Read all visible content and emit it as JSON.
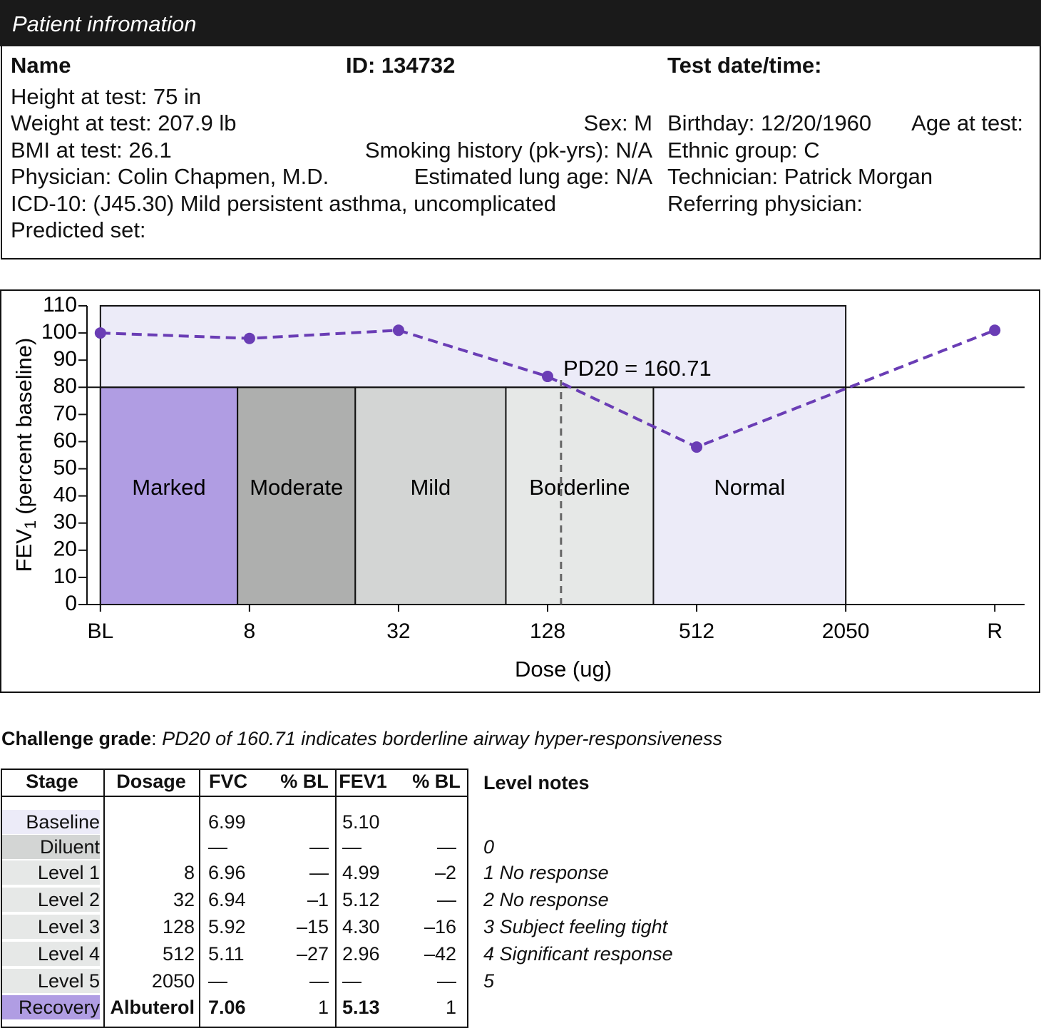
{
  "header": {
    "title": "Patient infromation"
  },
  "info": {
    "name": "Name",
    "id": "ID: 134732",
    "test_date": "Test date/time:",
    "height": "Height at test: 75 in",
    "weight": "Weight at test: 207.9 lb",
    "sex": "Sex: M",
    "birthday": "Birthday: 12/20/1960",
    "age": "Age at test:",
    "bmi": "BMI at test: 26.1",
    "smoking": "Smoking history (pk-yrs): N/A",
    "ethnic": "Ethnic group: C",
    "physician": "Physician: Colin Chapmen, M.D.",
    "lung_age": "Estimated lung age: N/A",
    "technician": "Technician: Patrick Morgan",
    "icd": "ICD-10: (J45.30) Mild persistent asthma, uncomplicated",
    "referring": "Referring physician:",
    "predicted": "Predicted set:"
  },
  "chart_data": {
    "type": "line",
    "xlabel": "Dose (ug)",
    "ylabel": "FEV",
    "ylabel_sub": "1",
    "ylabel_rest": "(percent baseline)",
    "x": [
      0,
      1,
      2,
      3,
      4,
      6
    ],
    "series": [
      {
        "color": "#6a3db5",
        "values": [
          100,
          98,
          101,
          84,
          58,
          101
        ]
      }
    ],
    "xlim": [
      -0.09,
      6.2
    ],
    "xticks": [
      {
        "value": 0,
        "label": "BL"
      },
      {
        "value": 1,
        "label": "8"
      },
      {
        "value": 2,
        "label": "32"
      },
      {
        "value": 3,
        "label": "128"
      },
      {
        "value": 4,
        "label": "512"
      },
      {
        "value": 5,
        "label": "2050"
      },
      {
        "value": 6,
        "label": "R"
      }
    ],
    "ylim": [
      0,
      110
    ],
    "yticks": [
      0,
      10,
      20,
      30,
      40,
      50,
      60,
      70,
      80,
      90,
      100,
      110
    ],
    "background": {
      "x": [
        0,
        5
      ],
      "color": "#ecebf8"
    },
    "threshold": 80,
    "zones": [
      {
        "label": "Marked",
        "x": [
          0,
          0.92
        ],
        "color": "#b09de3"
      },
      {
        "label": "Moderate",
        "x": [
          0.92,
          1.71
        ],
        "color": "#aeafae"
      },
      {
        "label": "Mild",
        "x": [
          1.71,
          2.72
        ],
        "color": "#d3d5d4"
      },
      {
        "label": "Borderline",
        "x": [
          2.72,
          3.71
        ],
        "color": "#e6e8e7"
      },
      {
        "label": "Normal",
        "x": [
          3.71,
          5
        ],
        "color": "#ecebf8"
      }
    ],
    "pd20": {
      "label": "PD20 = 160.71",
      "x": 3.09
    }
  },
  "grade": {
    "label": "Challenge grade",
    "sep": ":",
    "text": "PD20 of 160.71 indicates borderline airway hyper-responsiveness"
  },
  "table": {
    "columns": [
      "Stage",
      "Dosage",
      "FVC",
      "% BL",
      "FEV1",
      "% BL"
    ],
    "notes_header": "Level notes",
    "rows": [
      {
        "stage": "Baseline",
        "color": "#ecebf8",
        "cells": [
          null,
          "6.99",
          null,
          "5.10",
          null
        ],
        "note": null
      },
      {
        "stage": "Diluent",
        "color": "#d3d5d4",
        "cells": [
          null,
          "—",
          "—",
          "—",
          "—"
        ],
        "note": "0"
      },
      {
        "stage": "Level 1",
        "color": "#e6e8e7",
        "cells": [
          "8",
          "6.96",
          "—",
          "4.99",
          "–2"
        ],
        "note": "1 No response"
      },
      {
        "stage": "Level 2",
        "color": "#e6e8e7",
        "cells": [
          "32",
          "6.94",
          "–1",
          "5.12",
          "—"
        ],
        "note": "2 No response"
      },
      {
        "stage": "Level 3",
        "color": "#e6e8e7",
        "cells": [
          "128",
          "5.92",
          "–15",
          "4.30",
          "–16"
        ],
        "note": "3 Subject feeling tight"
      },
      {
        "stage": "Level 4",
        "color": "#e6e8e7",
        "cells": [
          "512",
          "5.11",
          "–27",
          "2.96",
          "–42"
        ],
        "note": "4 Significant response"
      },
      {
        "stage": "Level 5",
        "color": "#e6e8e7",
        "cells": [
          "2050",
          "—",
          "—",
          "—",
          "—"
        ],
        "note": "5"
      },
      {
        "stage": "Recovery",
        "color": "#b09de3",
        "bold": [
          true,
          true,
          false,
          true,
          false
        ],
        "cells": [
          "Albuterol",
          "7.06",
          "1",
          "5.13",
          "1"
        ],
        "note": null
      }
    ]
  }
}
